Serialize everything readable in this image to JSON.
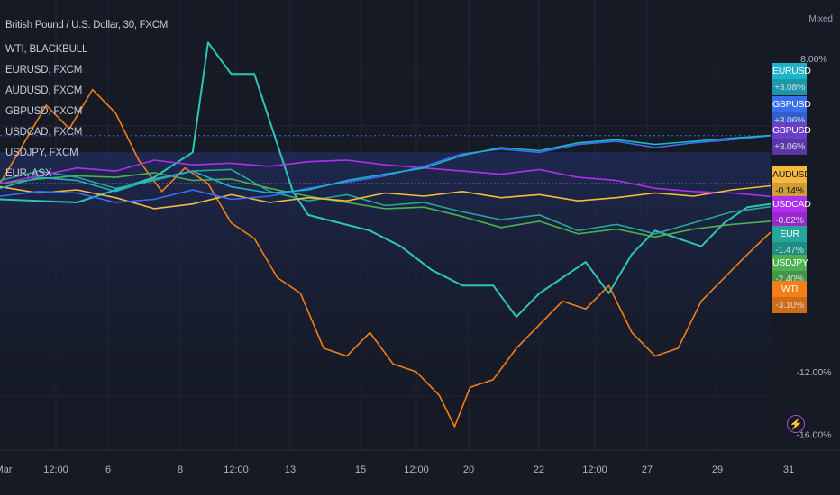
{
  "chart_title": "British Pound / U.S. Dollar, 30, FXCM",
  "scale_mode": "Mixed",
  "legend": [
    "WTI, BLACKBULL",
    "EURUSD, FXCM",
    "AUDUSD, FXCM",
    "GBPUSD, FXCM",
    "USDCAD, FXCM",
    "USDJPY, FXCM",
    "EUR, ASX"
  ],
  "colors": {
    "background": "#161a25",
    "grid": "#222636",
    "text": "#c7cbd6",
    "axis_text": "#b2b5be"
  },
  "chart_data": {
    "type": "line",
    "x_ticks": [
      "Mar",
      "12:00",
      "6",
      "8",
      "12:00",
      "13",
      "15",
      "12:00",
      "20",
      "22",
      "12:00",
      "27",
      "29",
      "31"
    ],
    "y_ticks": [
      "8.00%",
      "-12.00%",
      "-16.00%"
    ],
    "ylim": [
      -17,
      10
    ],
    "y_unit": "%",
    "series": [
      {
        "name": "EURUSD",
        "color": "#1fb3c9",
        "last": "+3.08%",
        "points": [
          [
            0,
            -0.3
          ],
          [
            5,
            0.4
          ],
          [
            10,
            0.2
          ],
          [
            15,
            -0.5
          ],
          [
            20,
            0.3
          ],
          [
            25,
            0.8
          ],
          [
            30,
            -0.2
          ],
          [
            35,
            -0.6
          ],
          [
            40,
            -0.4
          ],
          [
            45,
            0.2
          ],
          [
            50,
            0.6
          ],
          [
            55,
            1.0
          ],
          [
            60,
            1.8
          ],
          [
            65,
            2.3
          ],
          [
            70,
            2.1
          ],
          [
            75,
            2.6
          ],
          [
            80,
            2.8
          ],
          [
            85,
            2.5
          ],
          [
            90,
            2.7
          ],
          [
            95,
            2.9
          ],
          [
            100,
            3.08
          ]
        ]
      },
      {
        "name": "GBPUSD",
        "color": "#3b6ff2",
        "last": "+3.06%",
        "points": [
          [
            0,
            -0.8
          ],
          [
            5,
            -0.5
          ],
          [
            10,
            -0.6
          ],
          [
            15,
            -1.2
          ],
          [
            20,
            -1.0
          ],
          [
            25,
            -0.4
          ],
          [
            30,
            -1.0
          ],
          [
            35,
            -0.8
          ],
          [
            40,
            -0.3
          ],
          [
            45,
            0.1
          ],
          [
            50,
            0.5
          ],
          [
            55,
            1.1
          ],
          [
            60,
            1.9
          ],
          [
            65,
            2.2
          ],
          [
            70,
            2.0
          ],
          [
            75,
            2.5
          ],
          [
            80,
            2.7
          ],
          [
            85,
            2.3
          ],
          [
            90,
            2.6
          ],
          [
            95,
            2.8
          ],
          [
            100,
            3.06
          ]
        ]
      },
      {
        "name": "AUDUSD",
        "color": "#f5b940",
        "last": "-0.14%",
        "points": [
          [
            0,
            -0.2
          ],
          [
            5,
            -0.6
          ],
          [
            10,
            -0.4
          ],
          [
            15,
            -0.9
          ],
          [
            20,
            -1.6
          ],
          [
            25,
            -1.3
          ],
          [
            30,
            -0.7
          ],
          [
            35,
            -1.2
          ],
          [
            40,
            -0.9
          ],
          [
            45,
            -1.1
          ],
          [
            50,
            -0.6
          ],
          [
            55,
            -0.8
          ],
          [
            60,
            -0.5
          ],
          [
            65,
            -0.9
          ],
          [
            70,
            -0.7
          ],
          [
            75,
            -1.1
          ],
          [
            80,
            -0.9
          ],
          [
            85,
            -0.6
          ],
          [
            90,
            -0.8
          ],
          [
            95,
            -0.4
          ],
          [
            100,
            -0.14
          ]
        ]
      },
      {
        "name": "USDCAD",
        "color": "#b02ff0",
        "last": "-0.82%",
        "points": [
          [
            0,
            0.0
          ],
          [
            5,
            0.5
          ],
          [
            10,
            1.0
          ],
          [
            15,
            0.8
          ],
          [
            20,
            1.5
          ],
          [
            25,
            1.2
          ],
          [
            30,
            1.3
          ],
          [
            35,
            1.1
          ],
          [
            40,
            1.4
          ],
          [
            45,
            1.5
          ],
          [
            50,
            1.2
          ],
          [
            55,
            1.0
          ],
          [
            60,
            0.8
          ],
          [
            65,
            0.6
          ],
          [
            70,
            0.9
          ],
          [
            75,
            0.4
          ],
          [
            80,
            0.2
          ],
          [
            85,
            -0.3
          ],
          [
            90,
            -0.5
          ],
          [
            95,
            -0.6
          ],
          [
            100,
            -0.82
          ]
        ]
      },
      {
        "name": "EUR",
        "color": "#26a69a",
        "last": "-1.47%",
        "points": [
          [
            0,
            0.2
          ],
          [
            5,
            0.8
          ],
          [
            10,
            0.4
          ],
          [
            15,
            -0.3
          ],
          [
            20,
            0.2
          ],
          [
            25,
            0.8
          ],
          [
            30,
            0.9
          ],
          [
            35,
            -0.5
          ],
          [
            40,
            -1.1
          ],
          [
            45,
            -0.7
          ],
          [
            50,
            -1.4
          ],
          [
            55,
            -1.2
          ],
          [
            60,
            -1.8
          ],
          [
            65,
            -2.3
          ],
          [
            70,
            -2.0
          ],
          [
            75,
            -3.0
          ],
          [
            80,
            -2.6
          ],
          [
            85,
            -3.2
          ],
          [
            90,
            -2.5
          ],
          [
            95,
            -1.8
          ],
          [
            100,
            -1.47
          ]
        ]
      },
      {
        "name": "USDJPY",
        "color": "#4caf50",
        "last": "-2.40%",
        "points": [
          [
            0,
            0.0
          ],
          [
            5,
            0.3
          ],
          [
            10,
            0.5
          ],
          [
            15,
            0.4
          ],
          [
            20,
            0.7
          ],
          [
            25,
            0.2
          ],
          [
            30,
            0.3
          ],
          [
            35,
            -0.3
          ],
          [
            40,
            -0.8
          ],
          [
            45,
            -1.2
          ],
          [
            50,
            -1.6
          ],
          [
            55,
            -1.5
          ],
          [
            60,
            -2.1
          ],
          [
            65,
            -2.8
          ],
          [
            70,
            -2.4
          ],
          [
            75,
            -3.2
          ],
          [
            80,
            -2.9
          ],
          [
            85,
            -3.4
          ],
          [
            90,
            -2.9
          ],
          [
            95,
            -2.6
          ],
          [
            100,
            -2.4
          ]
        ]
      },
      {
        "name": "WTI",
        "color": "#f57f17",
        "last": "-3.10%",
        "points": [
          [
            0,
            0.0
          ],
          [
            3,
            2.5
          ],
          [
            6,
            5.0
          ],
          [
            9,
            3.5
          ],
          [
            12,
            6.0
          ],
          [
            15,
            4.5
          ],
          [
            18,
            1.5
          ],
          [
            21,
            -0.5
          ],
          [
            24,
            1.0
          ],
          [
            27,
            0.0
          ],
          [
            30,
            -2.5
          ],
          [
            33,
            -3.5
          ],
          [
            36,
            -6.0
          ],
          [
            39,
            -7.0
          ],
          [
            42,
            -10.5
          ],
          [
            45,
            -11.0
          ],
          [
            48,
            -9.5
          ],
          [
            51,
            -11.5
          ],
          [
            54,
            -12.0
          ],
          [
            57,
            -13.5
          ],
          [
            59,
            -15.5
          ],
          [
            61,
            -13.0
          ],
          [
            64,
            -12.5
          ],
          [
            67,
            -10.5
          ],
          [
            70,
            -9.0
          ],
          [
            73,
            -7.5
          ],
          [
            76,
            -8.0
          ],
          [
            79,
            -6.5
          ],
          [
            82,
            -9.5
          ],
          [
            85,
            -11.0
          ],
          [
            88,
            -10.5
          ],
          [
            91,
            -7.5
          ],
          [
            94,
            -6.0
          ],
          [
            97,
            -4.5
          ],
          [
            100,
            -3.1
          ]
        ]
      }
    ],
    "extra_line": {
      "name": "USD index step",
      "color": "#2ec4b6",
      "points": [
        [
          0,
          -1.0
        ],
        [
          10,
          -1.2
        ],
        [
          20,
          0.4
        ],
        [
          25,
          2.0
        ],
        [
          27,
          9.0
        ],
        [
          30,
          7.0
        ],
        [
          33,
          7.0
        ],
        [
          36,
          2.5
        ],
        [
          38,
          -0.5
        ],
        [
          40,
          -2.0
        ],
        [
          44,
          -2.5
        ],
        [
          48,
          -3.0
        ],
        [
          52,
          -4.0
        ],
        [
          56,
          -5.5
        ],
        [
          60,
          -6.5
        ],
        [
          64,
          -6.5
        ],
        [
          67,
          -8.5
        ],
        [
          70,
          -7.0
        ],
        [
          73,
          -6.0
        ],
        [
          76,
          -5.0
        ],
        [
          79,
          -7.0
        ],
        [
          82,
          -4.5
        ],
        [
          85,
          -3.0
        ],
        [
          88,
          -3.5
        ],
        [
          91,
          -4.0
        ],
        [
          94,
          -2.5
        ],
        [
          97,
          -1.5
        ],
        [
          100,
          -1.3
        ]
      ]
    }
  }
}
